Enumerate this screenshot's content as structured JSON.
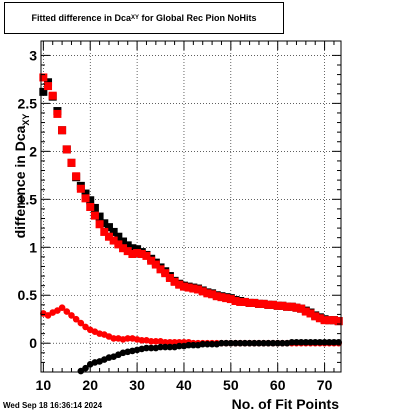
{
  "title": {
    "main": "Fitted difference in Dca",
    "sub": "XY",
    "rest": " for Global Rec Pion NoHits"
  },
  "timestamp": "Wed Sep 18 16:36:14 2024",
  "chart_data": {
    "type": "scatter",
    "xlabel": "No. of Fit Points",
    "ylabel": {
      "main": "difference in Dca",
      "sub": "XY"
    },
    "xlim": [
      9.5,
      73.5
    ],
    "ylim": [
      -0.3,
      3.15
    ],
    "x_ticks": [
      10,
      20,
      30,
      40,
      50,
      60,
      70
    ],
    "y_ticks": [
      0,
      0.5,
      1,
      1.5,
      2,
      2.5,
      3
    ],
    "y_tick_labels": [
      "0",
      "0.5",
      "1",
      "1.5",
      "2",
      "2.5",
      "3"
    ],
    "grid": true,
    "series": [
      {
        "color": "#000000",
        "marker": "square",
        "x": [
          10,
          11,
          12,
          13,
          14,
          15,
          16,
          17,
          18,
          19,
          20,
          21,
          22,
          23,
          24,
          25,
          26,
          27,
          28,
          29,
          30,
          31,
          32,
          33,
          34,
          35,
          36,
          37,
          38,
          39,
          40,
          41,
          42,
          43,
          44,
          45,
          46,
          47,
          48,
          49,
          50,
          51,
          52,
          53,
          54,
          55,
          56,
          57,
          58,
          59,
          60,
          61,
          62,
          63,
          64,
          65,
          66,
          67,
          68,
          69,
          70,
          71,
          72,
          73
        ],
        "y": [
          2.62,
          2.72,
          2.57,
          2.42,
          2.22,
          2.02,
          1.88,
          1.73,
          1.64,
          1.56,
          1.49,
          1.41,
          1.32,
          1.25,
          1.21,
          1.16,
          1.11,
          1.06,
          1.02,
          0.99,
          0.98,
          0.95,
          0.92,
          0.88,
          0.84,
          0.79,
          0.75,
          0.7,
          0.65,
          0.62,
          0.6,
          0.59,
          0.58,
          0.57,
          0.55,
          0.53,
          0.52,
          0.5,
          0.49,
          0.48,
          0.47,
          0.45,
          0.44,
          0.43,
          0.42,
          0.42,
          0.41,
          0.41,
          0.4,
          0.4,
          0.39,
          0.39,
          0.38,
          0.38,
          0.37,
          0.36,
          0.34,
          0.32,
          0.29,
          0.27,
          0.25,
          0.24,
          0.24,
          0.23
        ]
      },
      {
        "color": "#ff0000",
        "marker": "square",
        "x": [
          10,
          11,
          12,
          13,
          14,
          15,
          16,
          17,
          18,
          19,
          20,
          21,
          22,
          23,
          24,
          25,
          26,
          27,
          28,
          29,
          30,
          31,
          32,
          33,
          34,
          35,
          36,
          37,
          38,
          39,
          40,
          41,
          42,
          43,
          44,
          45,
          46,
          47,
          48,
          49,
          50,
          51,
          52,
          53,
          54,
          55,
          56,
          57,
          58,
          59,
          60,
          61,
          62,
          63,
          64,
          65,
          66,
          67,
          68,
          69,
          70,
          71,
          72,
          73
        ],
        "y": [
          2.77,
          2.68,
          2.58,
          2.39,
          2.22,
          2.02,
          1.88,
          1.74,
          1.61,
          1.51,
          1.42,
          1.33,
          1.24,
          1.16,
          1.11,
          1.07,
          1.03,
          0.99,
          0.96,
          0.93,
          0.94,
          0.93,
          0.91,
          0.86,
          0.82,
          0.77,
          0.73,
          0.68,
          0.64,
          0.61,
          0.59,
          0.58,
          0.57,
          0.56,
          0.54,
          0.52,
          0.51,
          0.49,
          0.48,
          0.47,
          0.46,
          0.44,
          0.43,
          0.43,
          0.42,
          0.42,
          0.41,
          0.41,
          0.4,
          0.4,
          0.39,
          0.39,
          0.38,
          0.38,
          0.37,
          0.36,
          0.33,
          0.31,
          0.28,
          0.26,
          0.24,
          0.24,
          0.24,
          0.23
        ]
      },
      {
        "color": "#ff0000",
        "marker": "circle",
        "x": [
          10,
          11,
          12,
          13,
          14,
          15,
          16,
          17,
          18,
          19,
          20,
          21,
          22,
          23,
          24,
          25,
          26,
          27,
          28,
          29,
          30,
          31,
          32,
          33,
          34,
          35,
          36,
          37,
          38,
          39,
          40,
          41,
          42,
          43,
          44,
          45,
          46,
          47,
          48,
          49,
          50,
          51,
          52,
          53,
          54,
          55,
          56,
          57,
          58,
          59,
          60,
          61,
          62,
          63,
          64,
          65,
          66,
          67,
          68,
          69,
          70,
          71,
          72,
          73
        ],
        "y": [
          0.31,
          0.29,
          0.32,
          0.34,
          0.37,
          0.33,
          0.29,
          0.25,
          0.21,
          0.17,
          0.14,
          0.12,
          0.1,
          0.09,
          0.07,
          0.05,
          0.05,
          0.04,
          0.05,
          0.05,
          0.04,
          0.03,
          0.03,
          0.02,
          0.02,
          0.02,
          0.01,
          0.01,
          0.01,
          0.01,
          0.01,
          0.01,
          0.0,
          0.0,
          0.0,
          0.0,
          0.0,
          0.0,
          0.0,
          0.0,
          0.0,
          0.0,
          0.0,
          0.0,
          0.0,
          0.0,
          0.0,
          0.0,
          0.0,
          0.0,
          0.0,
          0.0,
          0.0,
          0.0,
          0.0,
          0.0,
          0.0,
          0.0,
          0.0,
          0.0,
          0.0,
          0.0,
          0.0,
          0.0
        ]
      },
      {
        "color": "#000000",
        "marker": "circle",
        "x": [
          18,
          19,
          20,
          21,
          22,
          23,
          24,
          25,
          26,
          27,
          28,
          29,
          30,
          31,
          32,
          33,
          34,
          35,
          36,
          37,
          38,
          39,
          40,
          41,
          42,
          43,
          44,
          45,
          46,
          47,
          48,
          49,
          50,
          51,
          52,
          53,
          54,
          55,
          56,
          57,
          58,
          59,
          60,
          61,
          62,
          63,
          64,
          65,
          66,
          67,
          68,
          69,
          70,
          71,
          72,
          73
        ],
        "y": [
          -0.29,
          -0.26,
          -0.22,
          -0.2,
          -0.19,
          -0.17,
          -0.15,
          -0.14,
          -0.12,
          -0.1,
          -0.09,
          -0.08,
          -0.07,
          -0.06,
          -0.05,
          -0.05,
          -0.05,
          -0.04,
          -0.04,
          -0.04,
          -0.04,
          -0.03,
          -0.03,
          -0.02,
          -0.02,
          -0.02,
          -0.01,
          -0.01,
          -0.01,
          -0.01,
          0.0,
          0.0,
          0.0,
          0.0,
          0.0,
          0.0,
          0.0,
          0.0,
          0.0,
          0.0,
          0.0,
          0.0,
          0.0,
          0.0,
          0.0,
          0.01,
          0.01,
          0.01,
          0.01,
          0.01,
          0.01,
          0.01,
          0.01,
          0.01,
          0.01,
          0.01
        ]
      }
    ]
  }
}
